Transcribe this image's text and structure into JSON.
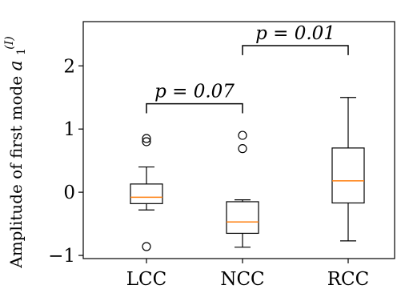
{
  "chart_data": {
    "type": "box",
    "ylabel": "Amplitude of first mode",
    "ylabel_symbol": "a",
    "ylabel_subscript": "1",
    "ylabel_superscript": "(I)",
    "ylim": [
      -1.05,
      2.7
    ],
    "yticks": [
      -1,
      0,
      1,
      2
    ],
    "ytick_labels": [
      "−1",
      "0",
      "1",
      "2"
    ],
    "grid": false,
    "categories": [
      "LCC",
      "NCC",
      "RCC"
    ],
    "boxes": [
      {
        "category": "LCC",
        "whisker_low": -0.28,
        "q1": -0.18,
        "median": -0.08,
        "q3": 0.13,
        "whisker_high": 0.4,
        "outliers": [
          0.8,
          0.85,
          -0.86
        ]
      },
      {
        "category": "NCC",
        "whisker_low": -0.87,
        "q1": -0.65,
        "median": -0.47,
        "q3": -0.15,
        "whisker_high": -0.12,
        "outliers": [
          0.9,
          0.69
        ]
      },
      {
        "category": "RCC",
        "whisker_low": -0.77,
        "q1": -0.17,
        "median": 0.18,
        "q3": 0.7,
        "whisker_high": 1.5,
        "outliers": []
      }
    ],
    "annotations": [
      {
        "from": "LCC",
        "to": "NCC",
        "text": "p = 0.07",
        "bracket_y": 1.4,
        "bracket_drop": 0.15
      },
      {
        "from": "NCC",
        "to": "RCC",
        "text": "p = 0.01",
        "bracket_y": 2.32,
        "bracket_drop": 0.15
      }
    ],
    "colors": {
      "median": "#ff7f0e",
      "box": "#000000"
    }
  }
}
